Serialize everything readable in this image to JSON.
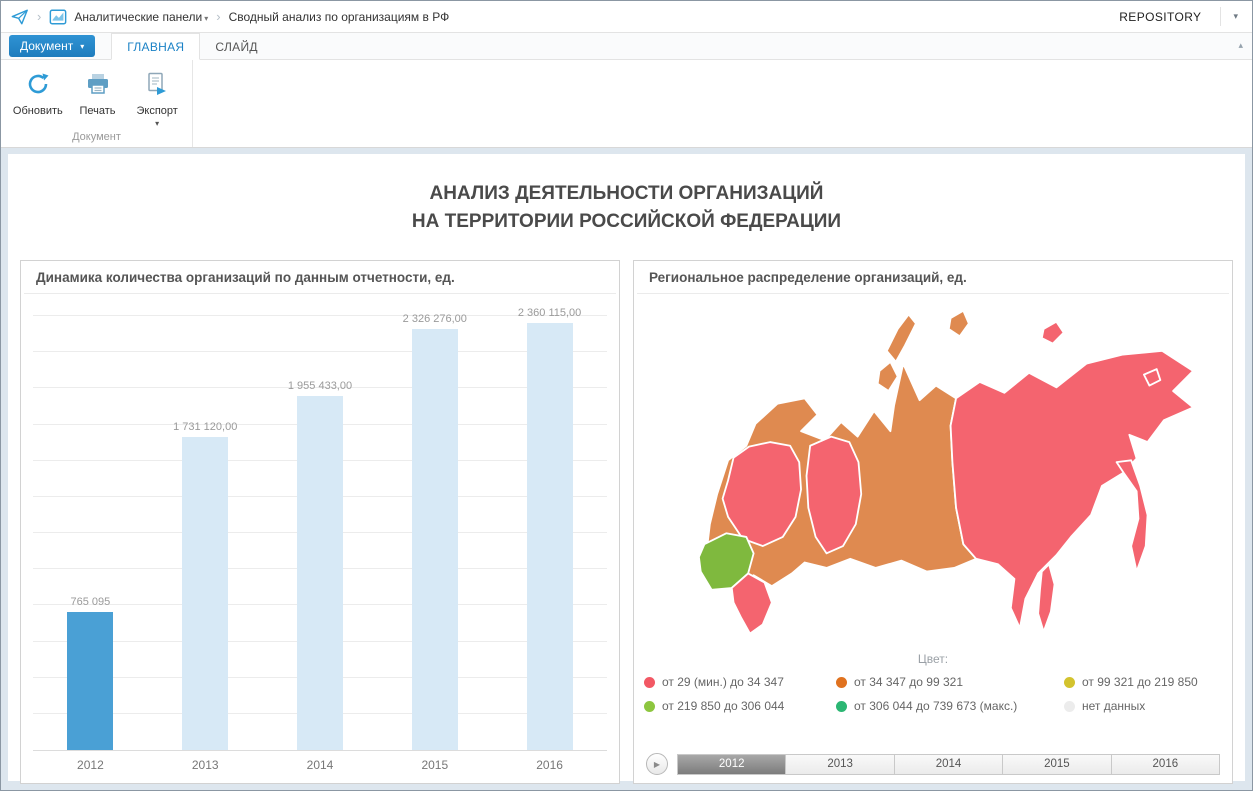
{
  "icons": {
    "caret_down": "▾",
    "caret_up": "▴",
    "play": "▶",
    "crumb_sep": "›"
  },
  "topbar": {
    "breadcrumb": {
      "item1": "Аналитические панели",
      "item2": "Сводный анализ по организациям в РФ"
    },
    "repository_label": "REPOSITORY"
  },
  "ribbon": {
    "document_button": "Документ",
    "tab_home": "ГЛАВНАЯ",
    "tab_slide": "СЛАЙД",
    "refresh_label": "Обновить",
    "print_label": "Печать",
    "export_label": "Экспорт",
    "group_label": "Документ"
  },
  "page": {
    "title_line1": "АНАЛИЗ ДЕЯТЕЛЬНОСТИ ОРГАНИЗАЦИЙ",
    "title_line2": "НА ТЕРРИТОРИИ РОССИЙСКОЙ ФЕДЕРАЦИИ"
  },
  "chart_data": [
    {
      "type": "bar",
      "title": "Динамика количества организаций по данным отчетности, ед.",
      "categories": [
        "2012",
        "2013",
        "2014",
        "2015",
        "2016"
      ],
      "values": [
        765095,
        1731120,
        1955433,
        2326276,
        2360115
      ],
      "value_labels": [
        "765 095",
        "1 731 120,00",
        "1 955 433,00",
        "2 326 276,00",
        "2 360 115,00"
      ],
      "xlabel": "",
      "ylabel": "",
      "ylim": [
        0,
        2500000
      ],
      "grid_step": 200000,
      "grid": true,
      "legend_position": "none",
      "highlight_index": 0,
      "bar_color": "#d7e9f6",
      "highlight_color": "#4aa0d5"
    },
    {
      "type": "map",
      "title": "Региональное распределение организаций, ед.",
      "legend_title": "Цвет:",
      "legend": [
        {
          "label": "от 29 (мин.) до 34 347",
          "color": "#f25864"
        },
        {
          "label": "от 34 347 до 99 321",
          "color": "#e0721f"
        },
        {
          "label": "от 99 321 до 219 850",
          "color": "#d3c32e"
        },
        {
          "label": "от 219 850 до 306 044",
          "color": "#8dc63f"
        },
        {
          "label": "от 306 044 до 739 673 (макс.)",
          "color": "#2bb673"
        },
        {
          "label": "нет данных",
          "color": "#ececec"
        }
      ],
      "region_colors": {
        "pink": "#f4646f",
        "orange": "#df8a50",
        "green": "#7fb93e"
      },
      "timeline": {
        "years": [
          "2012",
          "2013",
          "2014",
          "2015",
          "2016"
        ],
        "selected": "2012"
      }
    }
  ]
}
